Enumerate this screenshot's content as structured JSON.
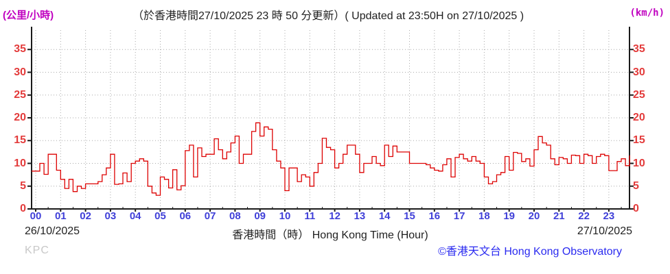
{
  "header": {
    "unit_left": "(公里/小時)",
    "title": "（於香港時間27/10/2025 23 時 50 分更新）( Updated at 23:50H on 27/10/2025 )",
    "unit_right": "(km/h)"
  },
  "footer": {
    "date_left": "26/10/2025",
    "axis_title": "香港時間（時） Hong Kong Time (Hour)",
    "date_right": "27/10/2025",
    "station_code": "KPC",
    "copyright": "©香港天文台 Hong Kong Observatory"
  },
  "colors": {
    "unit_magenta": "#c000c0",
    "axis_label_red": "#e33b3b",
    "hour_label_blue": "#4040d8",
    "copyright_blue": "#2a2af0",
    "station_gray": "#c8c8c8",
    "line_red": "#dd0000",
    "grid_gray": "#a8a8a8",
    "axis_black": "#1a1a1a",
    "text_black": "#1f1f1f"
  },
  "chart_data": {
    "type": "line",
    "title": "（於香港時間27/10/2025 23 時 50 分更新）( Updated at 23:50H on 27/10/2025 )",
    "xlabel": "香港時間（時） Hong Kong Time (Hour)",
    "ylabel_left": "(公里/小時)",
    "ylabel_right": "(km/h)",
    "date_start": "26/10/2025",
    "date_end": "27/10/2025",
    "x_ticks": [
      "00",
      "01",
      "02",
      "03",
      "04",
      "05",
      "06",
      "07",
      "08",
      "09",
      "10",
      "11",
      "12",
      "13",
      "14",
      "15",
      "16",
      "17",
      "18",
      "19",
      "20",
      "21",
      "22",
      "23"
    ],
    "y_ticks": [
      0,
      5,
      10,
      15,
      20,
      25,
      30,
      35
    ],
    "ylim": [
      0,
      40
    ],
    "xlim_hours": [
      0,
      24
    ],
    "grid": true,
    "legend": "none",
    "interval_minutes": 10,
    "start_time": "00:00",
    "end_time": "23:50",
    "series": [
      {
        "name": "wind speed (km/h)",
        "values": [
          8.3,
          10,
          7.6,
          12,
          12,
          8.5,
          6.5,
          4.5,
          6.5,
          3.8,
          5,
          4.5,
          5.5,
          5.5,
          5.5,
          6,
          7.5,
          9,
          12,
          5.4,
          5.5,
          7.9,
          6,
          10,
          10.5,
          11,
          10.5,
          5,
          3.5,
          3,
          7,
          6.5,
          4.6,
          8.6,
          4.2,
          5.1,
          12.8,
          14,
          7,
          13.4,
          11.5,
          12,
          12,
          15.4,
          13,
          11,
          12.5,
          14.5,
          16,
          10,
          12,
          12,
          17,
          18.9,
          16,
          18,
          17.5,
          13,
          10.5,
          9,
          4,
          9,
          9,
          6,
          7.5,
          7,
          5,
          8,
          10,
          15.5,
          13.5,
          13,
          9,
          10,
          12,
          14,
          14,
          12,
          8,
          10,
          10,
          11.5,
          10,
          9.5,
          14,
          11.5,
          13.8,
          12.5,
          12.5,
          12.5,
          10,
          10,
          10,
          10,
          9.7,
          9,
          8.5,
          8.3,
          9.7,
          11,
          7,
          11.3,
          12,
          11,
          10.5,
          11.5,
          10.5,
          10,
          7,
          5.5,
          6,
          7.5,
          8,
          11.5,
          8.5,
          12.4,
          12.2,
          10.4,
          11,
          9.4,
          13,
          15.9,
          14.5,
          14,
          11,
          9.7,
          11.3,
          11,
          10,
          11.8,
          11.7,
          10,
          12,
          11.7,
          10,
          11.5,
          12,
          11.7,
          8.4,
          8.4,
          10.4,
          11,
          9.5,
          11.7
        ]
      }
    ]
  }
}
